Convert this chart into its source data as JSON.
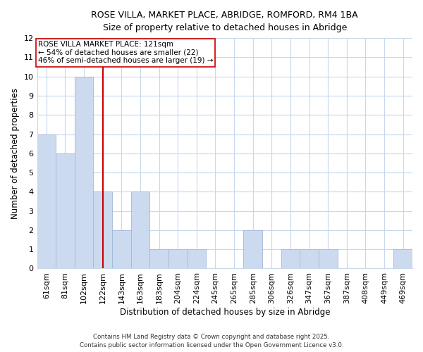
{
  "title": "ROSE VILLA, MARKET PLACE, ABRIDGE, ROMFORD, RM4 1BA",
  "subtitle": "Size of property relative to detached houses in Abridge",
  "xlabel": "Distribution of detached houses by size in Abridge",
  "ylabel": "Number of detached properties",
  "bin_labels": [
    "61sqm",
    "81sqm",
    "102sqm",
    "122sqm",
    "143sqm",
    "163sqm",
    "183sqm",
    "204sqm",
    "224sqm",
    "245sqm",
    "265sqm",
    "285sqm",
    "306sqm",
    "326sqm",
    "347sqm",
    "367sqm",
    "387sqm",
    "408sqm",
    "449sqm",
    "469sqm"
  ],
  "bar_heights": [
    7,
    6,
    10,
    4,
    2,
    4,
    1,
    1,
    1,
    0,
    0,
    2,
    0,
    1,
    1,
    1,
    0,
    0,
    0,
    1
  ],
  "bar_color": "#ccdaf0",
  "bar_edge_color": "#a0b8d8",
  "vline_index": 3,
  "vline_color": "#cc0000",
  "ylim": [
    0,
    12
  ],
  "annotation_text": "ROSE VILLA MARKET PLACE: 121sqm\n← 54% of detached houses are smaller (22)\n46% of semi-detached houses are larger (19) →",
  "annotation_box_color": "#ffffff",
  "annotation_box_edge": "#cc0000",
  "footnote1": "Contains HM Land Registry data © Crown copyright and database right 2025.",
  "footnote2": "Contains public sector information licensed under the Open Government Licence v3.0.",
  "background_color": "#ffffff",
  "grid_color": "#c8d8ec"
}
